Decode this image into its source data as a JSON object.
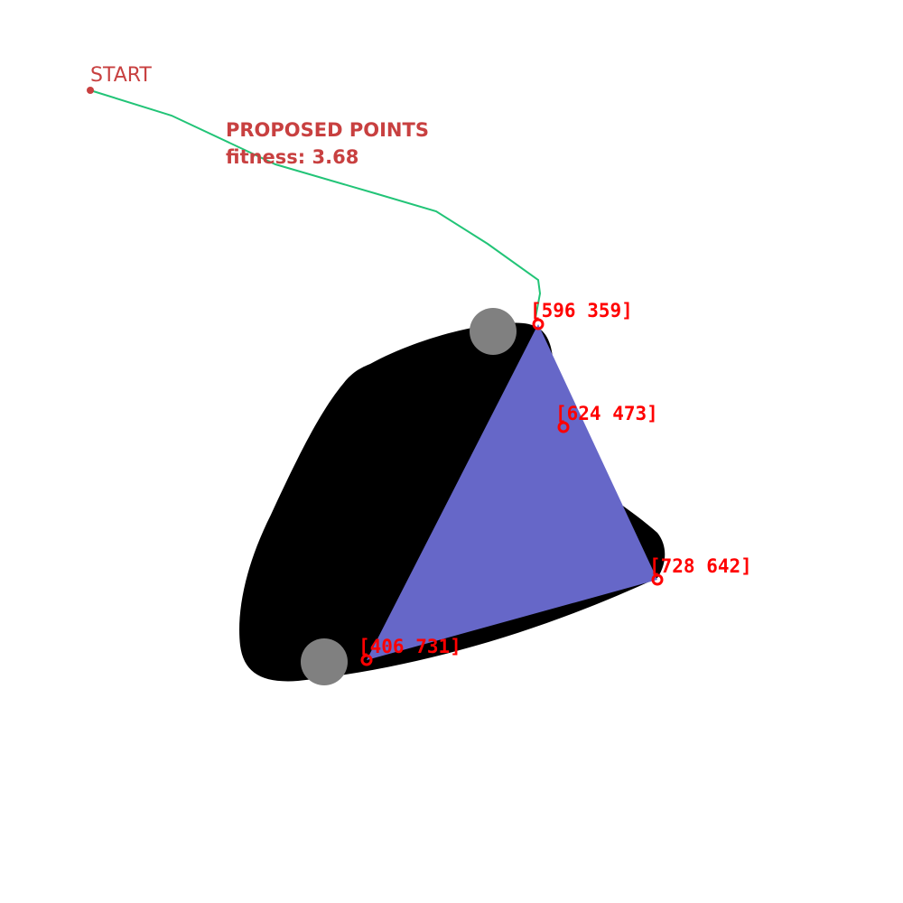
{
  "start_label": "START",
  "heading": "PROPOSED POINTS",
  "fitness_text": "fitness: 3.68",
  "colors": {
    "path": "#22c477",
    "start": "#c84040",
    "heading": "#c84040",
    "points": "#ff0000",
    "blob": "#000000",
    "triangle": "#6667c8",
    "obstacles": "#808080"
  },
  "points": [
    {
      "name": "p1",
      "label": "[596 359]"
    },
    {
      "name": "p2",
      "label": "[624 473]"
    },
    {
      "name": "p3",
      "label": "[728 642]"
    },
    {
      "name": "p4",
      "label": "[406 731]"
    }
  ]
}
